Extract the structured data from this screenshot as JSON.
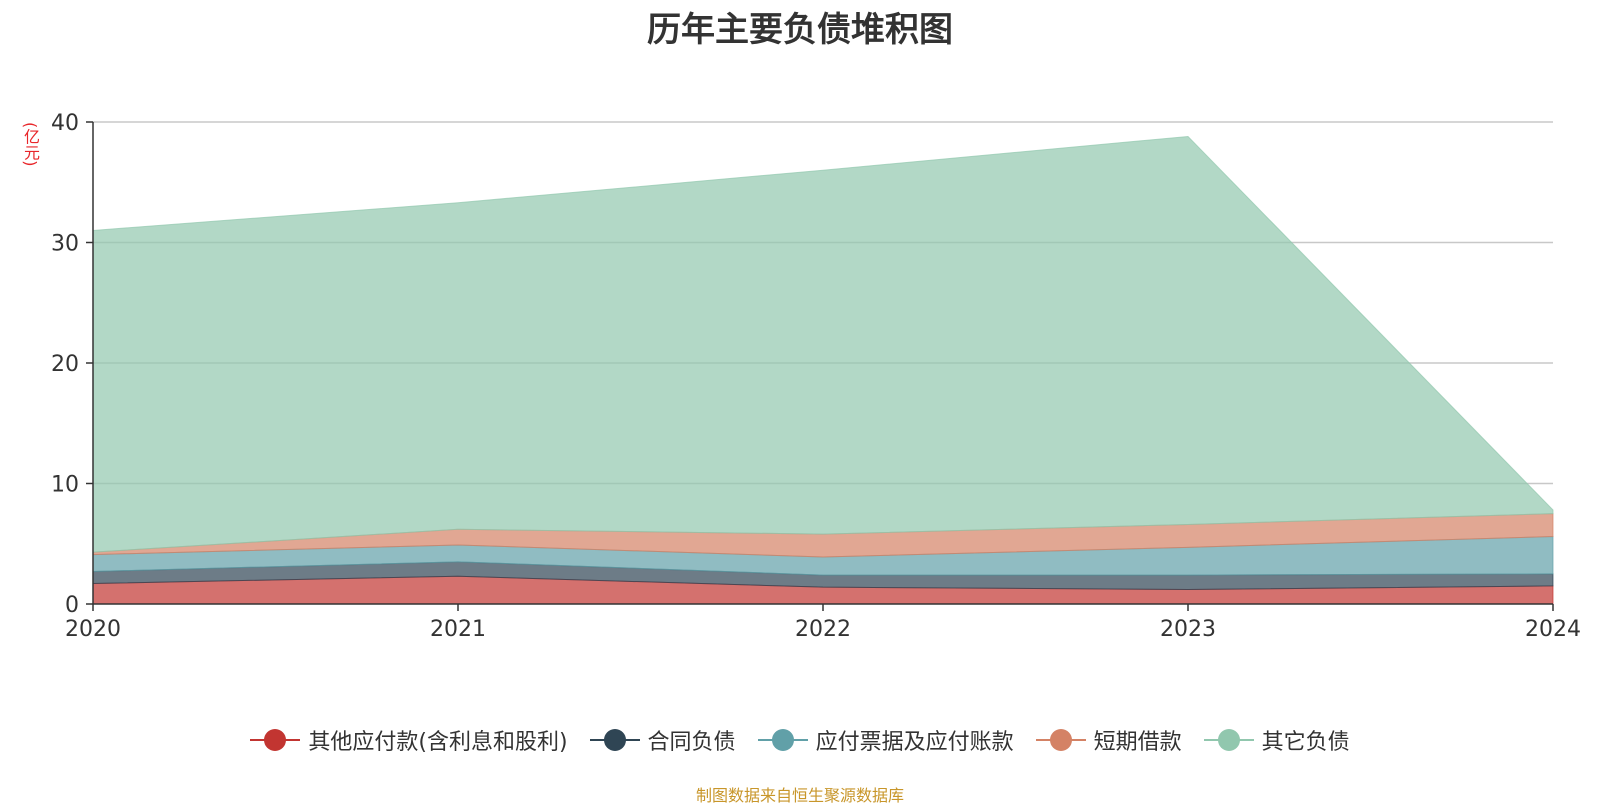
{
  "title": "历年主要负债堆积图",
  "unit": "(亿元)",
  "source": "制图数据来自恒生聚源数据库",
  "chart_data": {
    "type": "area",
    "stacked": true,
    "title": "历年主要负债堆积图",
    "ylabel": "(亿元)",
    "x": [
      "2020",
      "2021",
      "2022",
      "2023",
      "2024"
    ],
    "ylim": [
      0,
      40
    ],
    "yticks": [
      0,
      10,
      20,
      30,
      40
    ],
    "grid": true,
    "legend_position": "bottom",
    "series": [
      {
        "name": "其他应付款(含利息和股利)",
        "color": "#c23531",
        "values": [
          1.7,
          2.3,
          1.4,
          1.2,
          1.5
        ]
      },
      {
        "name": "合同负债",
        "color": "#2f4554",
        "values": [
          1.0,
          1.2,
          1.0,
          1.2,
          1.0
        ]
      },
      {
        "name": "应付票据及应付账款",
        "color": "#61a0a8",
        "values": [
          1.4,
          1.4,
          1.5,
          2.3,
          3.1
        ]
      },
      {
        "name": "短期借款",
        "color": "#d48265",
        "values": [
          0.2,
          1.3,
          1.9,
          1.9,
          1.9
        ]
      },
      {
        "name": "其它负债",
        "color": "#91c7ae",
        "values": [
          26.7,
          27.1,
          30.2,
          32.2,
          0.3
        ]
      }
    ]
  }
}
